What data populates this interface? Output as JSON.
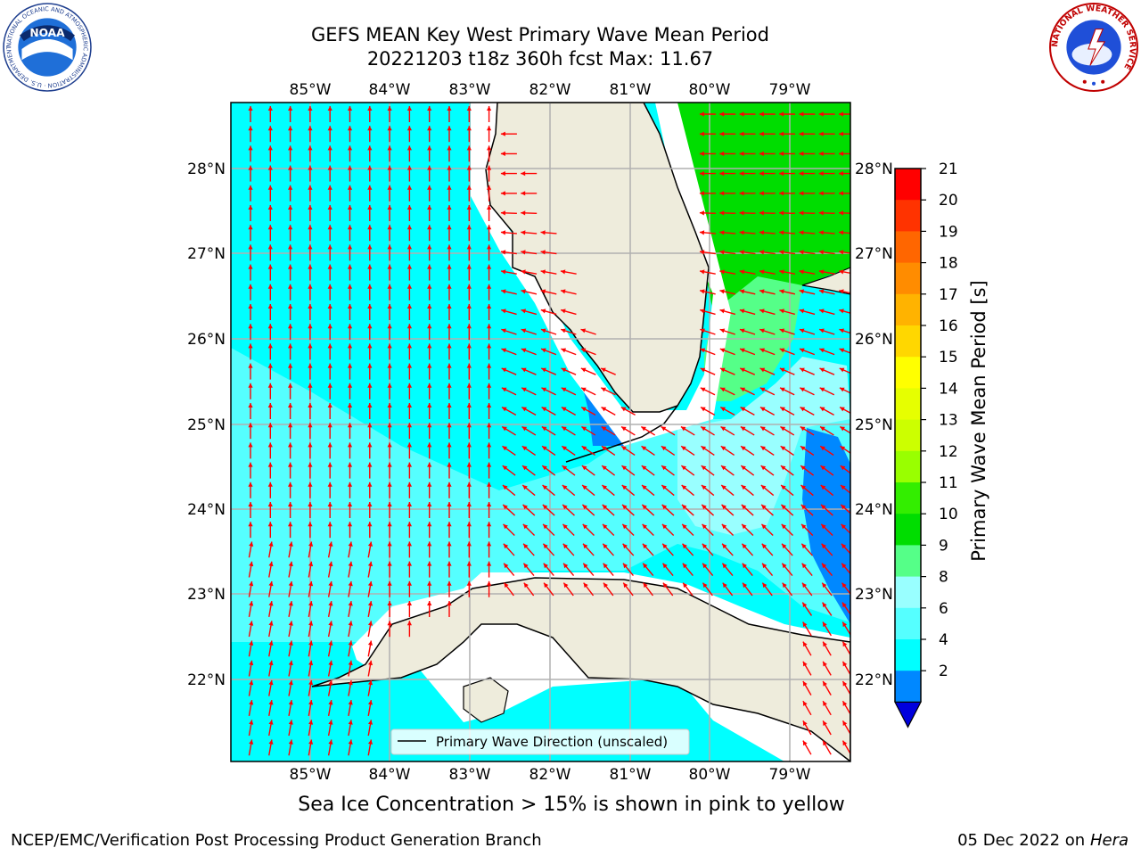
{
  "title_line1": "GEFS MEAN Key West Primary Wave Mean Period",
  "title_line2": "20221203 t18z 360h fcst   Max: 11.67",
  "lon_labels": [
    "85°W",
    "84°W",
    "83°W",
    "82°W",
    "81°W",
    "80°W",
    "79°W"
  ],
  "lat_labels": [
    "28°N",
    "27°N",
    "26°N",
    "25°N",
    "24°N",
    "23°N",
    "22°N"
  ],
  "legend_text": "Primary Wave Direction (unscaled)",
  "colorbar": {
    "label": "Primary Wave Mean Period [s]",
    "ticks": [
      "21",
      "20",
      "19",
      "18",
      "17",
      "16",
      "15",
      "14",
      "13",
      "12",
      "11",
      "10",
      "9",
      "8",
      "6",
      "4",
      "2"
    ],
    "colors": [
      "#ff0000",
      "#ff3300",
      "#ff6600",
      "#ff8c00",
      "#ffb300",
      "#ffd700",
      "#ffff00",
      "#e6ff00",
      "#ccff00",
      "#99ff00",
      "#33ee00",
      "#00dd00",
      "#55ff88",
      "#99ffff",
      "#55ffff",
      "#00ffff",
      "#0088ff",
      "#0000dd"
    ]
  },
  "note": "Sea Ice Concentration > 15% is shown in pink to yellow",
  "footer_left": "NCEP/EMC/Verification Post Processing Product Generation Branch",
  "footer_date": "05 Dec 2022 on",
  "footer_host": "Hera",
  "logos": {
    "noaa_text": "NOAA",
    "noaa_ring": "NATIONAL OCEANIC AND ATMOSPHERIC ADMINISTRATION · U.S. DEPARTMENT OF COMMERCE",
    "nws_ring": "NATIONAL WEATHER SERVICE"
  },
  "colors": {
    "ocean_main": "#00ffff",
    "ocean_light": "#55ffff",
    "ocean_pale": "#99ffff",
    "deep_blue": "#0088ff",
    "green": "#00dd00",
    "light_green": "#55ff88",
    "land": "#eeecdc",
    "arrow": "#ff0000"
  }
}
